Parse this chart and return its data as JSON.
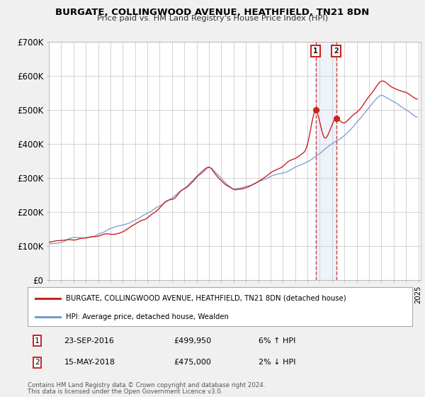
{
  "title": "BURGATE, COLLINGWOOD AVENUE, HEATHFIELD, TN21 8DN",
  "subtitle": "Price paid vs. HM Land Registry's House Price Index (HPI)",
  "ylim": [
    0,
    700000
  ],
  "yticks": [
    0,
    100000,
    200000,
    300000,
    400000,
    500000,
    600000,
    700000
  ],
  "ytick_labels": [
    "£0",
    "£100K",
    "£200K",
    "£300K",
    "£400K",
    "£500K",
    "£600K",
    "£700K"
  ],
  "hpi_color": "#7799cc",
  "price_color": "#cc2222",
  "marker1_value": 499950,
  "marker1_date_str": "23-SEP-2016",
  "marker1_price_str": "£499,950",
  "marker1_hpi_str": "6% ↑ HPI",
  "marker2_value": 475000,
  "marker2_date_str": "15-MAY-2018",
  "marker2_price_str": "£475,000",
  "marker2_hpi_str": "2% ↓ HPI",
  "legend_label_price": "BURGATE, COLLINGWOOD AVENUE, HEATHFIELD, TN21 8DN (detached house)",
  "legend_label_hpi": "HPI: Average price, detached house, Wealden",
  "footer1": "Contains HM Land Registry data © Crown copyright and database right 2024.",
  "footer2": "This data is licensed under the Open Government Licence v3.0.",
  "background_color": "#f0f0f0",
  "plot_background": "#ffffff",
  "grid_color": "#cccccc",
  "shaded_region_color": "#c8d8ee",
  "marker_box_color": "#cc2222"
}
